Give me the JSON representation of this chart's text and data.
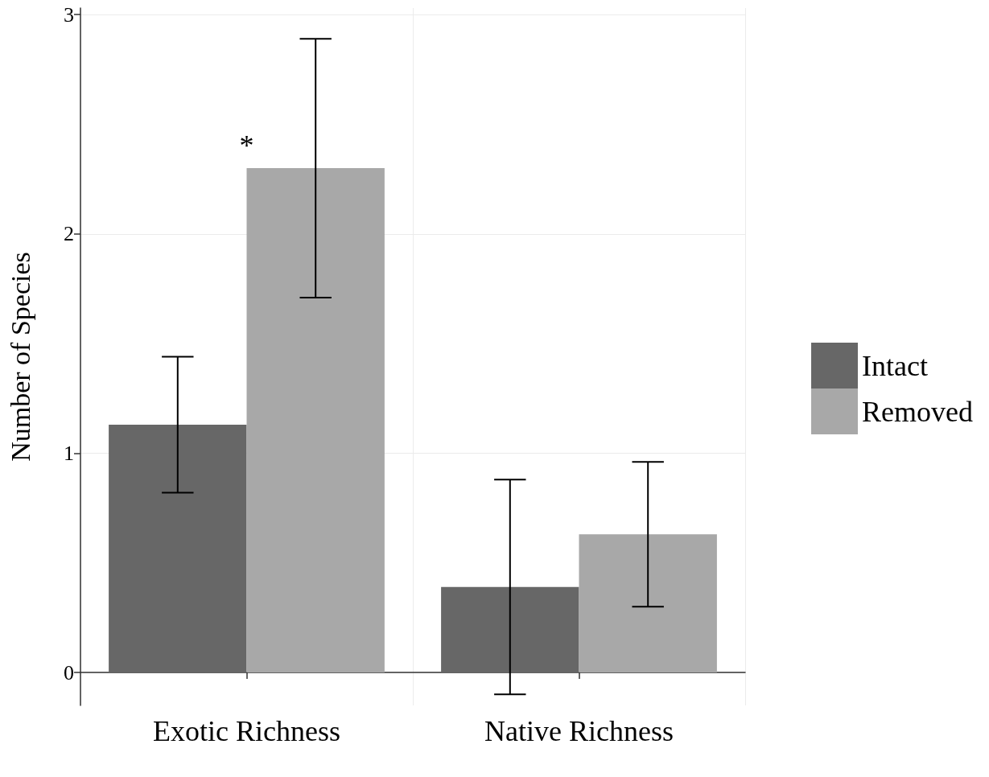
{
  "chart_data": {
    "type": "bar",
    "ylabel": "Number of Species",
    "categories": [
      "Exotic Richness",
      "Native Richness"
    ],
    "series": [
      {
        "name": "Intact",
        "color": "#676767",
        "values": [
          1.13,
          0.39
        ],
        "errors": [
          0.31,
          0.49
        ]
      },
      {
        "name": "Removed",
        "color": "#a8a8a8",
        "values": [
          2.3,
          0.63
        ],
        "errors": [
          0.59,
          0.33
        ]
      }
    ],
    "ylim": [
      -0.15,
      3.03
    ],
    "yticks": [
      0,
      1,
      2,
      3
    ],
    "grid": true,
    "legend": "right",
    "annotations": [
      "*"
    ]
  }
}
